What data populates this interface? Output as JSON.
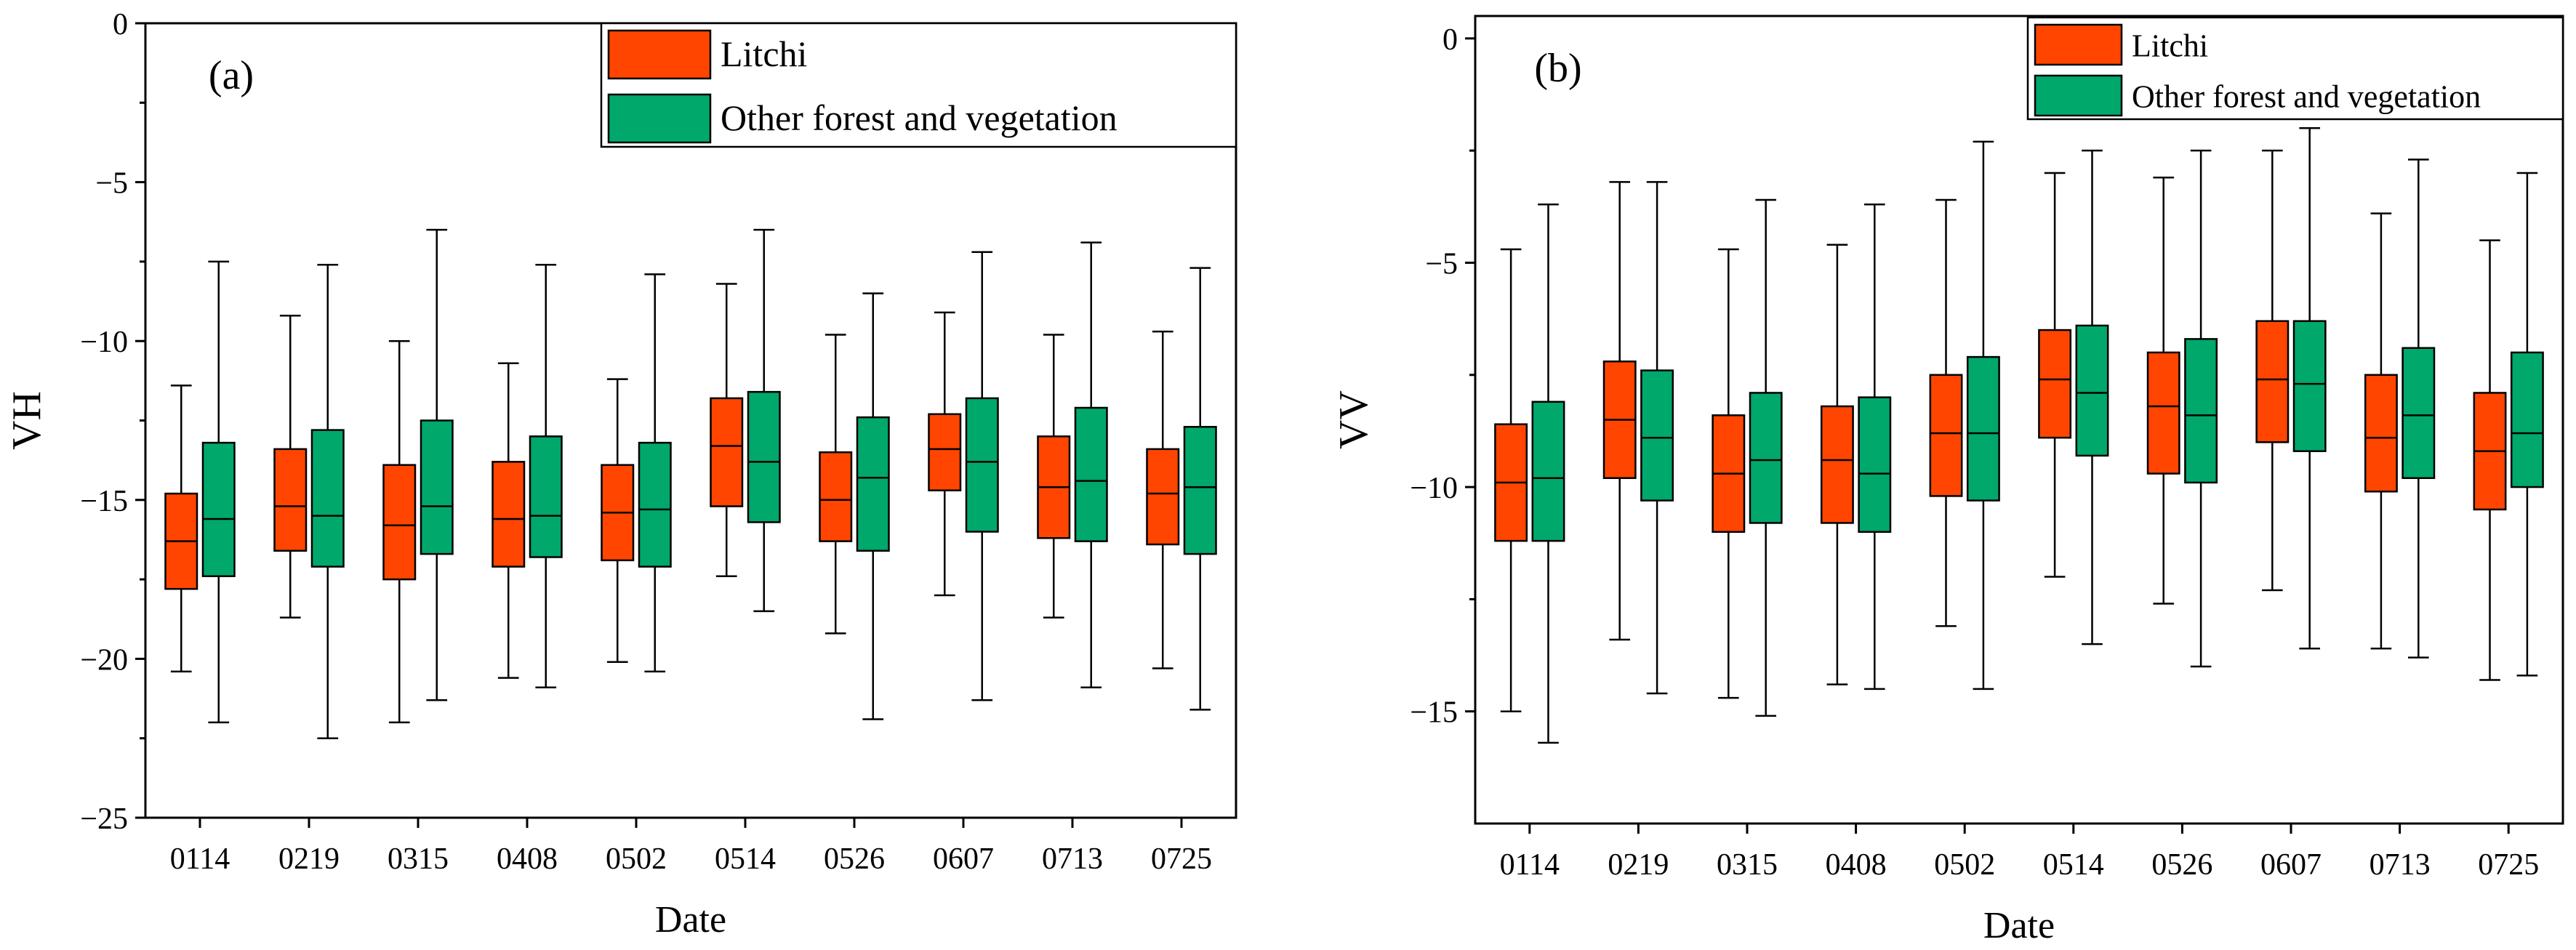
{
  "chart_data": [
    {
      "type": "boxplot",
      "panel_label": "(a)",
      "xlabel": "Date",
      "ylabel": "VH",
      "ylim": [
        -25,
        0
      ],
      "yticks": [
        0,
        -5,
        -10,
        -15,
        -20,
        -25
      ],
      "categories": [
        "0114",
        "0219",
        "0315",
        "0408",
        "0502",
        "0514",
        "0526",
        "0607",
        "0713",
        "0725"
      ],
      "legend_position": "top-right",
      "series": [
        {
          "name": "Litchi",
          "color": "#FF4500",
          "boxes": [
            {
              "whisker_low": -20.4,
              "q1": -17.8,
              "median": -16.3,
              "q3": -14.8,
              "whisker_high": -11.4
            },
            {
              "whisker_low": -18.7,
              "q1": -16.6,
              "median": -15.2,
              "q3": -13.4,
              "whisker_high": -9.2
            },
            {
              "whisker_low": -22.0,
              "q1": -17.5,
              "median": -15.8,
              "q3": -13.9,
              "whisker_high": -10.0
            },
            {
              "whisker_low": -20.6,
              "q1": -17.1,
              "median": -15.6,
              "q3": -13.8,
              "whisker_high": -10.7
            },
            {
              "whisker_low": -20.1,
              "q1": -16.9,
              "median": -15.4,
              "q3": -13.9,
              "whisker_high": -11.2
            },
            {
              "whisker_low": -17.4,
              "q1": -15.2,
              "median": -13.3,
              "q3": -11.8,
              "whisker_high": -8.2
            },
            {
              "whisker_low": -19.2,
              "q1": -16.3,
              "median": -15.0,
              "q3": -13.5,
              "whisker_high": -9.8
            },
            {
              "whisker_low": -18.0,
              "q1": -14.7,
              "median": -13.4,
              "q3": -12.3,
              "whisker_high": -9.1
            },
            {
              "whisker_low": -18.7,
              "q1": -16.2,
              "median": -14.6,
              "q3": -13.0,
              "whisker_high": -9.8
            },
            {
              "whisker_low": -20.3,
              "q1": -16.4,
              "median": -14.8,
              "q3": -13.4,
              "whisker_high": -9.7
            }
          ]
        },
        {
          "name": "Other forest and vegetation",
          "color": "#00A86B",
          "boxes": [
            {
              "whisker_low": -22.0,
              "q1": -17.4,
              "median": -15.6,
              "q3": -13.2,
              "whisker_high": -7.5
            },
            {
              "whisker_low": -22.5,
              "q1": -17.1,
              "median": -15.5,
              "q3": -12.8,
              "whisker_high": -7.6
            },
            {
              "whisker_low": -21.3,
              "q1": -16.7,
              "median": -15.2,
              "q3": -12.5,
              "whisker_high": -6.5
            },
            {
              "whisker_low": -20.9,
              "q1": -16.8,
              "median": -15.5,
              "q3": -13.0,
              "whisker_high": -7.6
            },
            {
              "whisker_low": -20.4,
              "q1": -17.1,
              "median": -15.3,
              "q3": -13.2,
              "whisker_high": -7.9
            },
            {
              "whisker_low": -18.5,
              "q1": -15.7,
              "median": -13.8,
              "q3": -11.6,
              "whisker_high": -6.5
            },
            {
              "whisker_low": -21.9,
              "q1": -16.6,
              "median": -14.3,
              "q3": -12.4,
              "whisker_high": -8.5
            },
            {
              "whisker_low": -21.3,
              "q1": -16.0,
              "median": -13.8,
              "q3": -11.8,
              "whisker_high": -7.2
            },
            {
              "whisker_low": -20.9,
              "q1": -16.3,
              "median": -14.4,
              "q3": -12.1,
              "whisker_high": -6.9
            },
            {
              "whisker_low": -21.6,
              "q1": -16.7,
              "median": -14.6,
              "q3": -12.7,
              "whisker_high": -7.7
            }
          ]
        }
      ]
    },
    {
      "type": "boxplot",
      "panel_label": "(b)",
      "xlabel": "Date",
      "ylabel": "VV",
      "ylim": [
        -17.5,
        0.5
      ],
      "yticks": [
        0,
        -5,
        -10,
        -15
      ],
      "categories": [
        "0114",
        "0219",
        "0315",
        "0408",
        "0502",
        "0514",
        "0526",
        "0607",
        "0713",
        "0725"
      ],
      "legend_position": "top-right",
      "series": [
        {
          "name": "Litchi",
          "color": "#FF4500",
          "boxes": [
            {
              "whisker_low": -15.0,
              "q1": -11.2,
              "median": -9.9,
              "q3": -8.6,
              "whisker_high": -4.7
            },
            {
              "whisker_low": -13.4,
              "q1": -9.8,
              "median": -8.5,
              "q3": -7.2,
              "whisker_high": -3.2
            },
            {
              "whisker_low": -14.7,
              "q1": -11.0,
              "median": -9.7,
              "q3": -8.4,
              "whisker_high": -4.7
            },
            {
              "whisker_low": -14.4,
              "q1": -10.8,
              "median": -9.4,
              "q3": -8.2,
              "whisker_high": -4.6
            },
            {
              "whisker_low": -13.1,
              "q1": -10.2,
              "median": -8.8,
              "q3": -7.5,
              "whisker_high": -3.6
            },
            {
              "whisker_low": -12.0,
              "q1": -8.9,
              "median": -7.6,
              "q3": -6.5,
              "whisker_high": -3.0
            },
            {
              "whisker_low": -12.6,
              "q1": -9.7,
              "median": -8.2,
              "q3": -7.0,
              "whisker_high": -3.1
            },
            {
              "whisker_low": -12.3,
              "q1": -9.0,
              "median": -7.6,
              "q3": -6.3,
              "whisker_high": -2.5
            },
            {
              "whisker_low": -13.6,
              "q1": -10.1,
              "median": -8.9,
              "q3": -7.5,
              "whisker_high": -3.9
            },
            {
              "whisker_low": -14.3,
              "q1": -10.5,
              "median": -9.2,
              "q3": -7.9,
              "whisker_high": -4.5
            }
          ]
        },
        {
          "name": "Other forest and vegetation",
          "color": "#00A86B",
          "boxes": [
            {
              "whisker_low": -15.7,
              "q1": -11.2,
              "median": -9.8,
              "q3": -8.1,
              "whisker_high": -3.7
            },
            {
              "whisker_low": -14.6,
              "q1": -10.3,
              "median": -8.9,
              "q3": -7.4,
              "whisker_high": -3.2
            },
            {
              "whisker_low": -15.1,
              "q1": -10.8,
              "median": -9.4,
              "q3": -7.9,
              "whisker_high": -3.6
            },
            {
              "whisker_low": -14.5,
              "q1": -11.0,
              "median": -9.7,
              "q3": -8.0,
              "whisker_high": -3.7
            },
            {
              "whisker_low": -14.5,
              "q1": -10.3,
              "median": -8.8,
              "q3": -7.1,
              "whisker_high": -2.3
            },
            {
              "whisker_low": -13.5,
              "q1": -9.3,
              "median": -7.9,
              "q3": -6.4,
              "whisker_high": -2.5
            },
            {
              "whisker_low": -14.0,
              "q1": -9.9,
              "median": -8.4,
              "q3": -6.7,
              "whisker_high": -2.5
            },
            {
              "whisker_low": -13.6,
              "q1": -9.2,
              "median": -7.7,
              "q3": -6.3,
              "whisker_high": -2.0
            },
            {
              "whisker_low": -13.8,
              "q1": -9.8,
              "median": -8.4,
              "q3": -6.9,
              "whisker_high": -2.7
            },
            {
              "whisker_low": -14.2,
              "q1": -10.0,
              "median": -8.8,
              "q3": -7.0,
              "whisker_high": -3.0
            }
          ]
        }
      ]
    }
  ]
}
